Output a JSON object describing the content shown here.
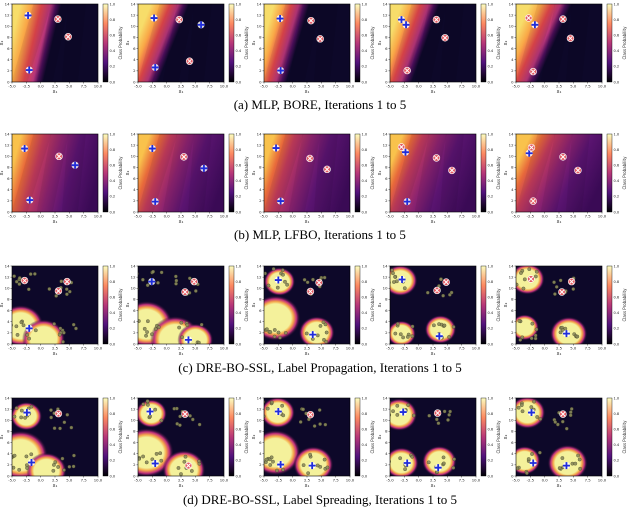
{
  "figure": {
    "rows": [
      {
        "caption": "(a)  MLP, BORE, Iterations 1 to 5",
        "kind": "bore",
        "panels": [
          {
            "angle": 12,
            "edge": 0.35,
            "markers": [
              [
                -2.2,
                12.8,
                "plus"
              ],
              [
                -2.0,
                2.3,
                "plus"
              ],
              [
                3.0,
                12.1,
                "x"
              ],
              [
                4.8,
                8.7,
                "x"
              ]
            ]
          },
          {
            "angle": 20,
            "edge": 0.3,
            "markers": [
              [
                -2.2,
                12.3,
                "plus"
              ],
              [
                -2.0,
                2.8,
                "plus"
              ],
              [
                2.2,
                12.0,
                "x"
              ],
              [
                6.0,
                11.0,
                "plus"
              ],
              [
                4.0,
                4.0,
                "x"
              ]
            ]
          },
          {
            "angle": 15,
            "edge": 0.28,
            "markers": [
              [
                -2.2,
                12.2,
                "plus"
              ],
              [
                -2.1,
                2.2,
                "plus"
              ],
              [
                3.2,
                11.8,
                "x"
              ],
              [
                4.8,
                8.3,
                "x"
              ]
            ]
          },
          {
            "angle": 18,
            "edge": 0.3,
            "markers": [
              [
                -3.0,
                12.0,
                "plus"
              ],
              [
                -2.2,
                11.0,
                "plus"
              ],
              [
                3.1,
                12.0,
                "x"
              ],
              [
                4.6,
                8.5,
                "x"
              ],
              [
                -2.0,
                2.2,
                "x"
              ]
            ]
          },
          {
            "angle": 22,
            "edge": 0.33,
            "markers": [
              [
                -2.8,
                12.3,
                "x"
              ],
              [
                -1.7,
                11.0,
                "plus"
              ],
              [
                3.2,
                12.1,
                "x"
              ],
              [
                4.5,
                8.4,
                "x"
              ],
              [
                -2.0,
                2.0,
                "x"
              ]
            ]
          }
        ]
      },
      {
        "caption": "(b)  MLP, LFBO, Iterations 1 to 5",
        "kind": "lfbo",
        "panels": [
          {
            "angle": 14,
            "edge": 0.33,
            "markers": [
              [
                -2.8,
                12.2,
                "plus"
              ],
              [
                -1.9,
                2.3,
                "plus"
              ],
              [
                3.2,
                10.7,
                "x"
              ],
              [
                6.0,
                9.0,
                "plus"
              ]
            ]
          },
          {
            "angle": 18,
            "edge": 0.3,
            "markers": [
              [
                -2.5,
                12.2,
                "plus"
              ],
              [
                -2.0,
                2.0,
                "plus"
              ],
              [
                3.0,
                10.6,
                "x"
              ],
              [
                6.5,
                8.4,
                "plus"
              ]
            ]
          },
          {
            "angle": 16,
            "edge": 0.29,
            "markers": [
              [
                -2.9,
                12.3,
                "plus"
              ],
              [
                -2.1,
                2.1,
                "plus"
              ],
              [
                3.0,
                10.3,
                "x"
              ],
              [
                6.0,
                8.2,
                "x"
              ]
            ]
          },
          {
            "angle": 20,
            "edge": 0.28,
            "markers": [
              [
                -3.0,
                12.5,
                "x"
              ],
              [
                -2.3,
                11.5,
                "plus"
              ],
              [
                -2.0,
                2.0,
                "plus"
              ],
              [
                3.1,
                10.4,
                "x"
              ],
              [
                5.8,
                8.0,
                "x"
              ]
            ]
          },
          {
            "angle": 24,
            "edge": 0.31,
            "markers": [
              [
                -2.7,
                11.3,
                "plus"
              ],
              [
                -2.3,
                12.4,
                "x"
              ],
              [
                3.2,
                10.6,
                "x"
              ],
              [
                -2.0,
                2.1,
                "x"
              ],
              [
                5.8,
                8.0,
                "x"
              ]
            ]
          }
        ]
      },
      {
        "caption": "(c)  DRE-BO-SSL, Label Propagation, Iterations 1 to 5",
        "kind": "ssl",
        "panels": [
          {
            "blobs": [
              [
                -3.5,
                3.5,
                3.2
              ],
              [
                0.5,
                1.0,
                3.0
              ]
            ],
            "markers": [
              [
                -2.8,
                12.2,
                "x"
              ],
              [
                3.1,
                10.2,
                "x"
              ],
              [
                4.6,
                12.0,
                "x"
              ],
              [
                -2.0,
                3.0,
                "plus"
              ]
            ]
          },
          {
            "blobs": [
              [
                -3.5,
                3.8,
                3.6
              ],
              [
                1.5,
                1.0,
                3.5
              ],
              [
                5.0,
                0.8,
                2.5
              ]
            ],
            "markers": [
              [
                -2.6,
                12.0,
                "plus"
              ],
              [
                3.2,
                10.0,
                "x"
              ],
              [
                4.8,
                12.0,
                "x"
              ],
              [
                3.8,
                0.8,
                "plus"
              ]
            ]
          },
          {
            "blobs": [
              [
                -3.0,
                5.0,
                3.5
              ],
              [
                -2.3,
                12.0,
                2.2
              ],
              [
                4.2,
                2.2,
                2.5
              ]
            ],
            "markers": [
              [
                -2.5,
                12.3,
                "plus"
              ],
              [
                3.1,
                10.1,
                "x"
              ],
              [
                4.6,
                11.8,
                "x"
              ],
              [
                3.5,
                1.8,
                "plus"
              ]
            ]
          },
          {
            "blobs": [
              [
                -3.2,
                12.2,
                2.4
              ],
              [
                3.8,
                2.8,
                2.2
              ],
              [
                -3.0,
                2.0,
                2.0
              ]
            ],
            "markers": [
              [
                -2.9,
                12.4,
                "plus"
              ],
              [
                3.2,
                10.3,
                "x"
              ],
              [
                4.8,
                11.9,
                "x"
              ],
              [
                3.6,
                1.5,
                "plus"
              ]
            ]
          },
          {
            "blobs": [
              [
                -3.0,
                12.5,
                2.4
              ],
              [
                4.2,
                2.0,
                2.6
              ],
              [
                -3.5,
                3.2,
                2.0
              ]
            ],
            "markers": [
              [
                -2.4,
                12.5,
                "x"
              ],
              [
                3.0,
                10.0,
                "x"
              ],
              [
                4.7,
                12.0,
                "x"
              ],
              [
                3.8,
                2.0,
                "plus"
              ]
            ]
          }
        ]
      },
      {
        "caption": "(d)  DRE-BO-SSL, Label Spreading, Iterations 1 to 5",
        "kind": "ssl",
        "panels": [
          {
            "blobs": [
              [
                -3.5,
                4.0,
                3.8
              ],
              [
                -2.5,
                11.5,
                2.2
              ],
              [
                1.0,
                1.0,
                2.8
              ]
            ],
            "markers": [
              [
                -2.4,
                12.2,
                "plus"
              ],
              [
                3.1,
                12.0,
                "x"
              ],
              [
                -1.6,
                2.6,
                "plus"
              ]
            ]
          },
          {
            "blobs": [
              [
                -3.5,
                4.5,
                3.8
              ],
              [
                -2.7,
                12.0,
                2.2
              ],
              [
                3.0,
                1.2,
                3.0
              ]
            ],
            "markers": [
              [
                -2.9,
                12.4,
                "plus"
              ],
              [
                3.2,
                11.9,
                "x"
              ],
              [
                -2.0,
                2.4,
                "plus"
              ],
              [
                3.8,
                2.0,
                "x"
              ]
            ]
          },
          {
            "blobs": [
              [
                -3.0,
                4.5,
                3.5
              ],
              [
                -2.6,
                12.2,
                2.4
              ],
              [
                3.6,
                2.2,
                2.8
              ]
            ],
            "markers": [
              [
                -2.5,
                12.4,
                "plus"
              ],
              [
                3.1,
                11.8,
                "x"
              ],
              [
                3.4,
                2.0,
                "plus"
              ],
              [
                -2.1,
                2.2,
                "plus"
              ]
            ]
          },
          {
            "blobs": [
              [
                -3.4,
                11.8,
                2.5
              ],
              [
                3.6,
                2.8,
                2.4
              ],
              [
                -3.0,
                2.5,
                2.4
              ]
            ],
            "markers": [
              [
                -2.7,
                12.3,
                "plus"
              ],
              [
                3.3,
                12.1,
                "x"
              ],
              [
                3.4,
                1.6,
                "plus"
              ],
              [
                -2.0,
                2.5,
                "plus"
              ]
            ]
          },
          {
            "blobs": [
              [
                -3.0,
                12.2,
                2.5
              ],
              [
                4.0,
                2.5,
                2.8
              ],
              [
                -3.5,
                3.0,
                2.2
              ]
            ],
            "markers": [
              [
                -2.3,
                12.2,
                "plus"
              ],
              [
                3.2,
                11.9,
                "x"
              ],
              [
                3.8,
                2.0,
                "plus"
              ],
              [
                -2.0,
                2.5,
                "plus"
              ]
            ]
          }
        ]
      }
    ],
    "x_ticks": [
      "-5.0",
      "-2.5",
      "0.0",
      "2.5",
      "5.0",
      "7.5",
      "10.0"
    ],
    "y_ticks": [
      "0",
      "2",
      "4",
      "6",
      "8",
      "10",
      "12",
      "14"
    ],
    "x_label": "x₁",
    "y_label": "x₂",
    "cbar_ticks": [
      "0.0",
      "0.2",
      "0.4",
      "0.6",
      "0.8",
      "1.0"
    ],
    "cbar_label": "Class Probability",
    "colors": {
      "low": "#0d0829",
      "mid": "#b7367a",
      "high": "#f7dd6a",
      "ssl_high": "#f4f19b",
      "plus": "#1f2ddc",
      "x_fill": "#e35b63",
      "points": "#8b8b5a"
    }
  }
}
